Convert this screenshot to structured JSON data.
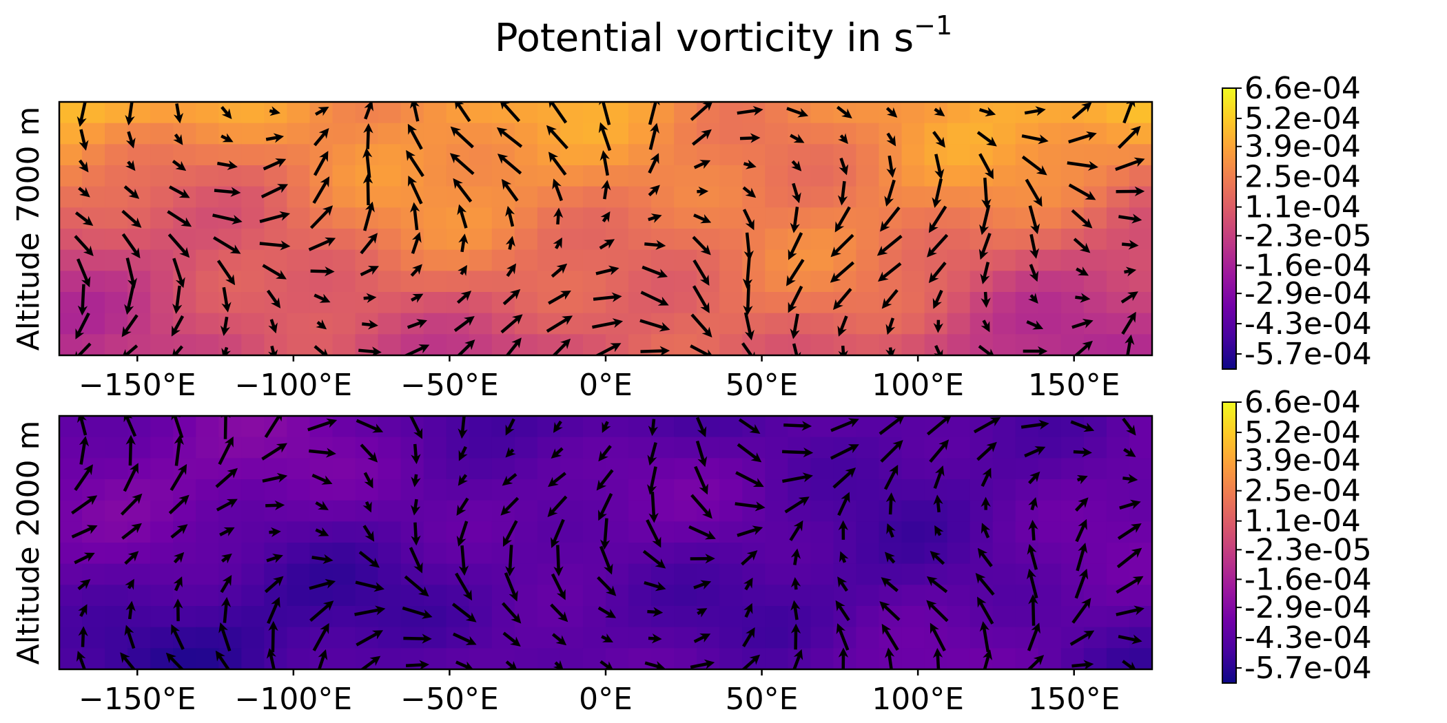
{
  "figure": {
    "title_main": "Potential vorticity in s",
    "title_sup": "−1"
  },
  "colormap": [
    "#0d0887",
    "#46039f",
    "#7201a8",
    "#9c179e",
    "#bd3786",
    "#d8576b",
    "#ed7953",
    "#fb9f3a",
    "#fdca26",
    "#f0f921"
  ],
  "chart_data": [
    {
      "type": "heatmap",
      "subtype": "filled-contour with wind vector quiver overlay",
      "ylabel": "Altitude 7000 m",
      "xticks": [
        -150,
        -100,
        -50,
        0,
        50,
        100,
        150
      ],
      "xtick_labels": [
        "−150°E",
        "−100°E",
        "−50°E",
        "0°E",
        "50°E",
        "100°E",
        "150°E"
      ],
      "xlim": [
        -175,
        175
      ],
      "field_range": [
        -0.00057,
        0.00066
      ],
      "field_summary": "mostly positive (orange to yellow), maxima near 2.5e-04 to 6.6e-04 in upper band, magenta lows near -2.3e-05 in lower band",
      "colorbar_ticks": [
        "6.6e-04",
        "5.2e-04",
        "3.9e-04",
        "2.5e-04",
        "1.1e-04",
        "-2.3e-05",
        "-1.6e-04",
        "-2.9e-04",
        "-4.3e-04",
        "-5.7e-04"
      ],
      "colorbar_range": [
        -0.00064,
        0.00066
      ]
    },
    {
      "type": "heatmap",
      "subtype": "filled-contour with wind vector quiver overlay",
      "ylabel": "Altitude 2000 m",
      "xticks": [
        -150,
        -100,
        -50,
        0,
        50,
        100,
        150
      ],
      "xtick_labels": [
        "−150°E",
        "−100°E",
        "−50°E",
        "0°E",
        "50°E",
        "100°E",
        "150°E"
      ],
      "xlim": [
        -175,
        175
      ],
      "field_range": [
        -0.00057,
        0.00066
      ],
      "field_summary": "mostly negative (deep blue to purple), values near -5.7e-04 to -2.9e-04, slightly higher magenta band near -1.6e-04 in center",
      "colorbar_ticks": [
        "6.6e-04",
        "5.2e-04",
        "3.9e-04",
        "2.5e-04",
        "1.1e-04",
        "-2.3e-05",
        "-1.6e-04",
        "-2.9e-04",
        "-4.3e-04",
        "-5.7e-04"
      ],
      "colorbar_range": [
        -0.00064,
        0.00066
      ]
    }
  ]
}
